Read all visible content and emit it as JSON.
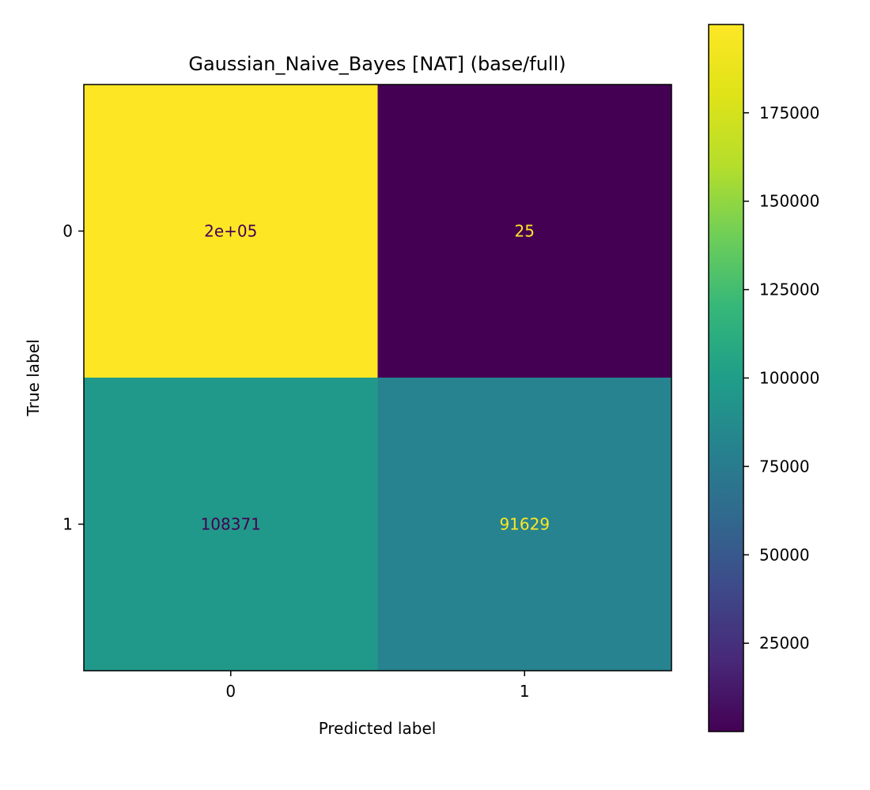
{
  "chart_data": {
    "type": "heatmap",
    "title": "Gaussian_Naive_Bayes [NAT] (base/full)",
    "xlabel": "Predicted label",
    "ylabel": "True label",
    "x_categories": [
      "0",
      "1"
    ],
    "y_categories": [
      "0",
      "1"
    ],
    "values": [
      [
        199975,
        25
      ],
      [
        108371,
        91629
      ]
    ],
    "cell_labels": [
      [
        "2e+05",
        "25"
      ],
      [
        "108371",
        "91629"
      ]
    ],
    "cell_label_colors": [
      [
        "#440154",
        "#fde725"
      ],
      [
        "#440154",
        "#fde725"
      ]
    ],
    "colormap": "viridis",
    "colorbar": {
      "range": [
        25,
        199975
      ],
      "ticks": [
        25000,
        50000,
        75000,
        100000,
        125000,
        150000,
        175000
      ],
      "tick_labels": [
        "25000",
        "50000",
        "75000",
        "100000",
        "125000",
        "150000",
        "175000"
      ]
    },
    "cell_colors": [
      [
        "#fde725",
        "#440154"
      ],
      [
        "#21998a",
        "#26838f"
      ]
    ]
  }
}
